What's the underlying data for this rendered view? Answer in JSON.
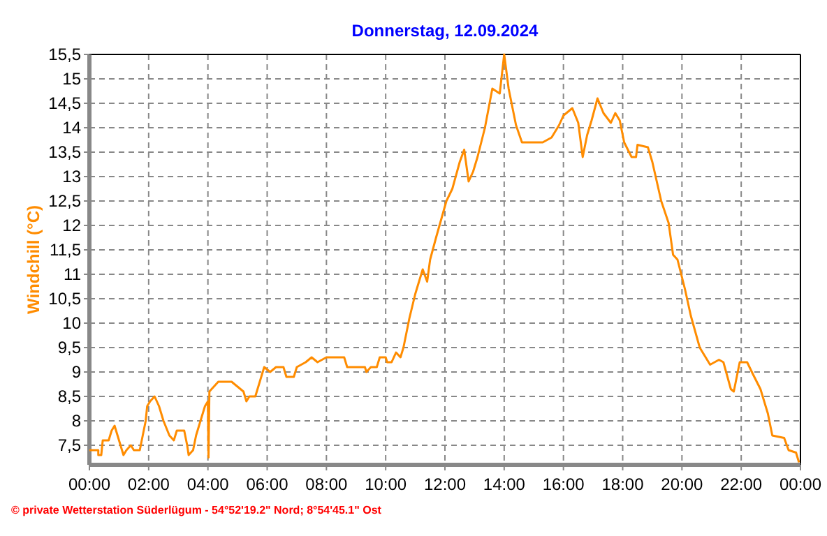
{
  "chart_data": {
    "type": "line",
    "title": "Donnerstag, 12.09.2024",
    "ylabel": "Windchill  (°C)",
    "annotations": [
      "© private Wetterstation Süderlügum - 54°52'19.2\" Nord; 8°54'45.1\" Ost"
    ],
    "x": [
      0,
      0.3,
      0.3,
      0.4,
      0.45,
      0.65,
      0.7,
      0.75,
      0.85,
      0.9,
      1.0,
      1.1,
      1.15,
      1.25,
      1.4,
      1.5,
      1.7,
      1.8,
      1.9,
      1.95,
      2.05,
      2.2,
      2.35,
      2.5,
      2.7,
      2.85,
      2.95,
      3.2,
      3.3,
      3.35,
      3.5,
      3.6,
      3.75,
      3.9,
      4.0,
      4.02,
      4.05,
      4.2,
      4.35,
      4.8,
      5.0,
      5.2,
      5.3,
      5.4,
      5.6,
      5.75,
      5.9,
      6.1,
      6.3,
      6.55,
      6.65,
      6.9,
      7.0,
      7.3,
      7.5,
      7.7,
      8.0,
      8.6,
      8.7,
      9.3,
      9.35,
      9.5,
      9.7,
      9.8,
      10.0,
      10.05,
      10.2,
      10.35,
      10.5,
      10.6,
      10.8,
      11.0,
      11.25,
      11.4,
      11.5,
      11.7,
      12.05,
      12.25,
      12.5,
      12.65,
      12.8,
      12.95,
      13.1,
      13.35,
      13.6,
      13.85,
      14.0,
      14.15,
      14.4,
      14.6,
      15.3,
      15.6,
      15.85,
      16.0,
      16.3,
      16.5,
      16.65,
      16.8,
      16.95,
      17.15,
      17.35,
      17.6,
      17.75,
      17.9,
      18.05,
      18.3,
      18.45,
      18.5,
      18.85,
      19.0,
      19.15,
      19.3,
      19.55,
      19.7,
      19.85,
      20.1,
      20.3,
      20.6,
      20.95,
      21.25,
      21.4,
      21.65,
      21.75,
      21.95,
      22.2,
      22.4,
      22.65,
      22.9,
      23.05,
      23.45,
      23.6,
      23.85,
      23.95
    ],
    "series": [
      {
        "color": "#ff8c00",
        "values": [
          7.4,
          7.4,
          7.3,
          7.3,
          7.6,
          7.6,
          7.7,
          7.8,
          7.9,
          7.8,
          7.6,
          7.4,
          7.3,
          7.4,
          7.5,
          7.4,
          7.4,
          7.7,
          8.0,
          8.3,
          8.4,
          8.5,
          8.3,
          8.0,
          7.7,
          7.6,
          7.8,
          7.8,
          7.5,
          7.3,
          7.4,
          7.7,
          8.0,
          8.3,
          8.4,
          7.25,
          8.6,
          8.7,
          8.8,
          8.8,
          8.7,
          8.6,
          8.4,
          8.5,
          8.5,
          8.8,
          9.1,
          9.0,
          9.1,
          9.1,
          8.9,
          8.9,
          9.1,
          9.2,
          9.3,
          9.2,
          9.3,
          9.3,
          9.1,
          9.1,
          9.0,
          9.1,
          9.1,
          9.3,
          9.3,
          9.2,
          9.2,
          9.4,
          9.3,
          9.5,
          10.1,
          10.6,
          11.1,
          10.85,
          11.3,
          11.75,
          12.5,
          12.75,
          13.3,
          13.55,
          12.9,
          13.1,
          13.4,
          14.0,
          14.8,
          14.7,
          15.5,
          14.8,
          14.05,
          13.7,
          13.7,
          13.8,
          14.05,
          14.25,
          14.4,
          14.1,
          13.4,
          13.85,
          14.15,
          14.6,
          14.3,
          14.1,
          14.3,
          14.15,
          13.7,
          13.4,
          13.4,
          13.65,
          13.6,
          13.3,
          12.9,
          12.5,
          12.05,
          11.4,
          11.3,
          10.7,
          10.15,
          9.5,
          9.15,
          9.25,
          9.2,
          8.65,
          8.6,
          9.2,
          9.2,
          8.95,
          8.65,
          8.15,
          7.7,
          7.65,
          7.4,
          7.35,
          7.15
        ]
      }
    ],
    "xlim": [
      0,
      24
    ],
    "xticks": [
      {
        "value": 0,
        "label": "00:00"
      },
      {
        "value": 2,
        "label": "02:00"
      },
      {
        "value": 4,
        "label": "04:00"
      },
      {
        "value": 6,
        "label": "06:00"
      },
      {
        "value": 8,
        "label": "08:00"
      },
      {
        "value": 10,
        "label": "10:00"
      },
      {
        "value": 12,
        "label": "12:00"
      },
      {
        "value": 14,
        "label": "14:00"
      },
      {
        "value": 16,
        "label": "16:00"
      },
      {
        "value": 18,
        "label": "18:00"
      },
      {
        "value": 20,
        "label": "20:00"
      },
      {
        "value": 22,
        "label": "22:00"
      },
      {
        "value": 24,
        "label": "00:00"
      }
    ],
    "ylim": [
      7.1,
      15.5
    ],
    "yticks": [
      {
        "value": 7.5,
        "label": "7,5"
      },
      8,
      {
        "value": 8.5,
        "label": "8,5"
      },
      9,
      {
        "value": 9.5,
        "label": "9,5"
      },
      10,
      {
        "value": 10.5,
        "label": "10,5"
      },
      11,
      {
        "value": 11.5,
        "label": "11,5"
      },
      12,
      {
        "value": 12.5,
        "label": "12,5"
      },
      13,
      {
        "value": 13.5,
        "label": "13,5"
      },
      14,
      {
        "value": 14.5,
        "label": "14,5"
      },
      15,
      {
        "value": 15.5,
        "label": "15,5"
      }
    ],
    "grid": true,
    "marker": "none",
    "line_style": "solid"
  }
}
